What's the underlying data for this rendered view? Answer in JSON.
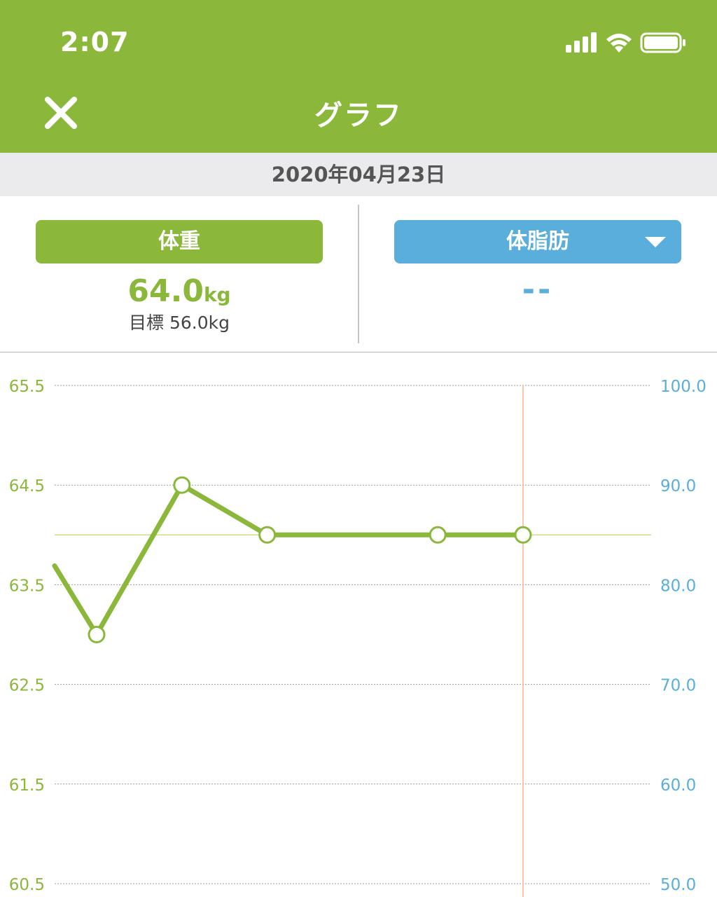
{
  "status_bar": {
    "time": "2:07",
    "signal_icon": "cellular-signal-icon",
    "wifi_icon": "wifi-icon",
    "battery_icon": "battery-icon"
  },
  "nav": {
    "title": "グラフ",
    "close_icon": "close-icon"
  },
  "date": "2020年04月23日",
  "summary": {
    "weight": {
      "label": "体重",
      "value": "64.0",
      "unit": "kg",
      "goal": "目標 56.0kg"
    },
    "body_fat": {
      "label": "体脂肪",
      "value": "--",
      "dropdown_icon": "dropdown-triangle-icon"
    }
  },
  "colors": {
    "accent_green": "#8bb73b",
    "accent_blue": "#5aaedb",
    "selection_line": "#f6b38c",
    "target_line": "#d8d98a"
  },
  "chart_data": {
    "type": "line",
    "series": [
      {
        "values": [
          63.7,
          63.0,
          64.5,
          64.0,
          64.0,
          64.0
        ],
        "axis": "left"
      }
    ],
    "y_left": {
      "ticks": [
        "65.5",
        "64.5",
        "63.5",
        "62.5",
        "61.5",
        "60.5"
      ],
      "ylim": [
        60.5,
        65.5
      ]
    },
    "y_right": {
      "ticks": [
        "100.0",
        "90.0",
        "80.0",
        "70.0",
        "60.0",
        "50.0"
      ],
      "ylim": [
        50.0,
        100.0
      ]
    },
    "x_slots": [
      -0.5,
      0,
      1,
      2,
      4,
      5
    ],
    "selected_slot": 5,
    "reference_value": 64.0,
    "grid": true
  }
}
